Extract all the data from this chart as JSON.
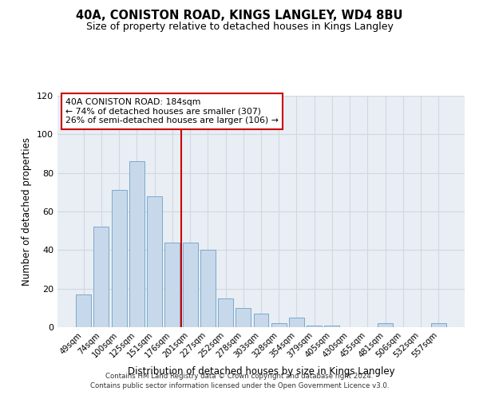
{
  "title": "40A, CONISTON ROAD, KINGS LANGLEY, WD4 8BU",
  "subtitle": "Size of property relative to detached houses in Kings Langley",
  "xlabel": "Distribution of detached houses by size in Kings Langley",
  "ylabel": "Number of detached properties",
  "bar_labels": [
    "49sqm",
    "74sqm",
    "100sqm",
    "125sqm",
    "151sqm",
    "176sqm",
    "201sqm",
    "227sqm",
    "252sqm",
    "278sqm",
    "303sqm",
    "328sqm",
    "354sqm",
    "379sqm",
    "405sqm",
    "430sqm",
    "455sqm",
    "481sqm",
    "506sqm",
    "532sqm",
    "557sqm"
  ],
  "bar_values": [
    17,
    52,
    71,
    86,
    68,
    44,
    44,
    40,
    15,
    10,
    7,
    2,
    5,
    1,
    1,
    0,
    0,
    2,
    0,
    0,
    2
  ],
  "bar_color": "#c8d8eb",
  "bar_edge_color": "#7aaac8",
  "vline_x": 6,
  "vline_color": "#cc0000",
  "annotation_text": "40A CONISTON ROAD: 184sqm\n← 74% of detached houses are smaller (307)\n26% of semi-detached houses are larger (106) →",
  "annotation_box_color": "#ffffff",
  "annotation_box_edge": "#cc0000",
  "ylim": [
    0,
    120
  ],
  "yticks": [
    0,
    20,
    40,
    60,
    80,
    100,
    120
  ],
  "grid_color": "#d0d8e0",
  "bg_color": "#e8eef4",
  "fig_bg_color": "#ffffff",
  "footer1": "Contains HM Land Registry data © Crown copyright and database right 2024.",
  "footer2": "Contains public sector information licensed under the Open Government Licence v3.0.",
  "title_fontsize": 10.5,
  "subtitle_fontsize": 9
}
